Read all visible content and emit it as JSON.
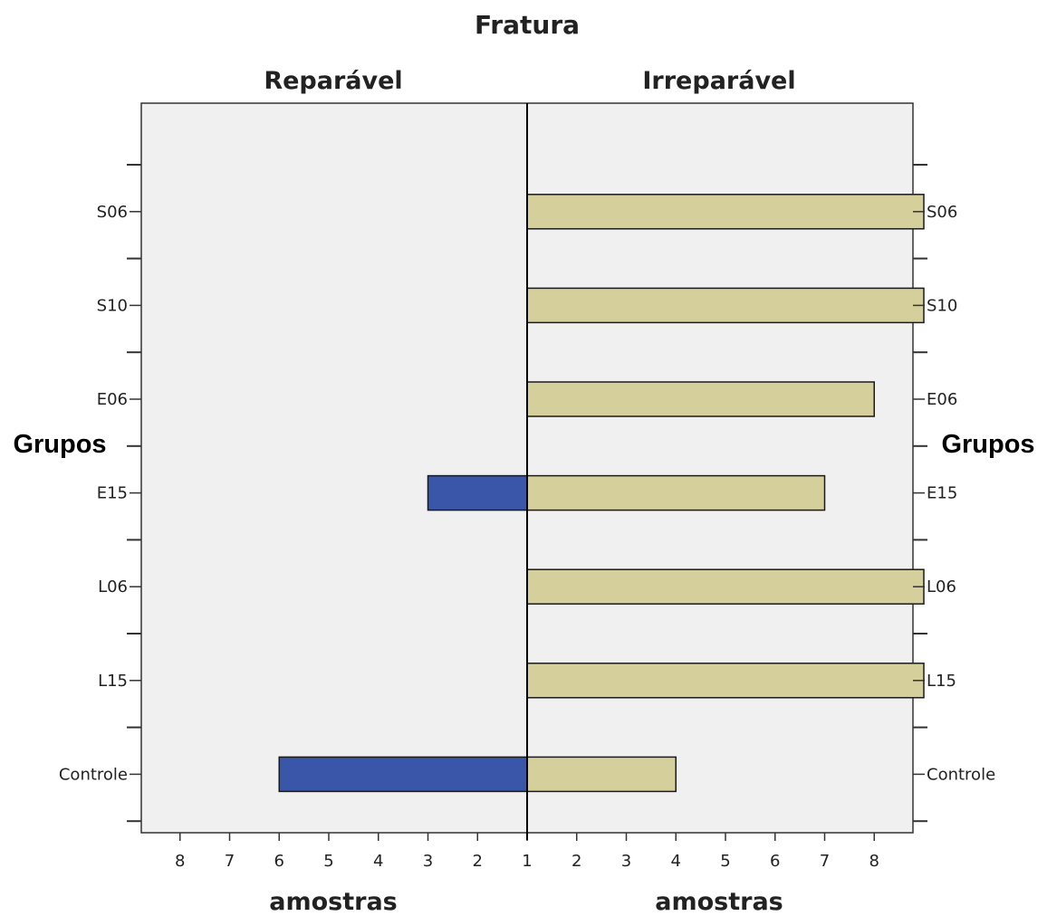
{
  "chart_data": {
    "type": "bar",
    "orientation": "horizontal",
    "layout": "population-pyramid",
    "title": "Fratura",
    "panels": [
      {
        "name": "Reparável",
        "side": "left"
      },
      {
        "name": "Irreparável",
        "side": "right"
      }
    ],
    "ylabel": "Grupos",
    "xlabel": "amostras",
    "categories": [
      "S06",
      "S10",
      "E06",
      "E15",
      "L06",
      "L15",
      "Controle"
    ],
    "series": [
      {
        "name": "Reparável",
        "color": "#3a56a8",
        "values": [
          0,
          0,
          0,
          2,
          0,
          0,
          5
        ]
      },
      {
        "name": "Irreparável",
        "color": "#d4cf9b",
        "values": [
          8,
          8,
          7,
          6,
          8,
          8,
          3
        ]
      }
    ],
    "xticks_left": [
      "8",
      "7",
      "6",
      "5",
      "4",
      "3",
      "2",
      "1"
    ],
    "xticks_right": [
      "1",
      "2",
      "3",
      "4",
      "5",
      "6",
      "7",
      "8"
    ],
    "xlim": [
      0,
      8
    ],
    "background_color": "#f0f0f0",
    "grid": false,
    "legend": "none"
  }
}
